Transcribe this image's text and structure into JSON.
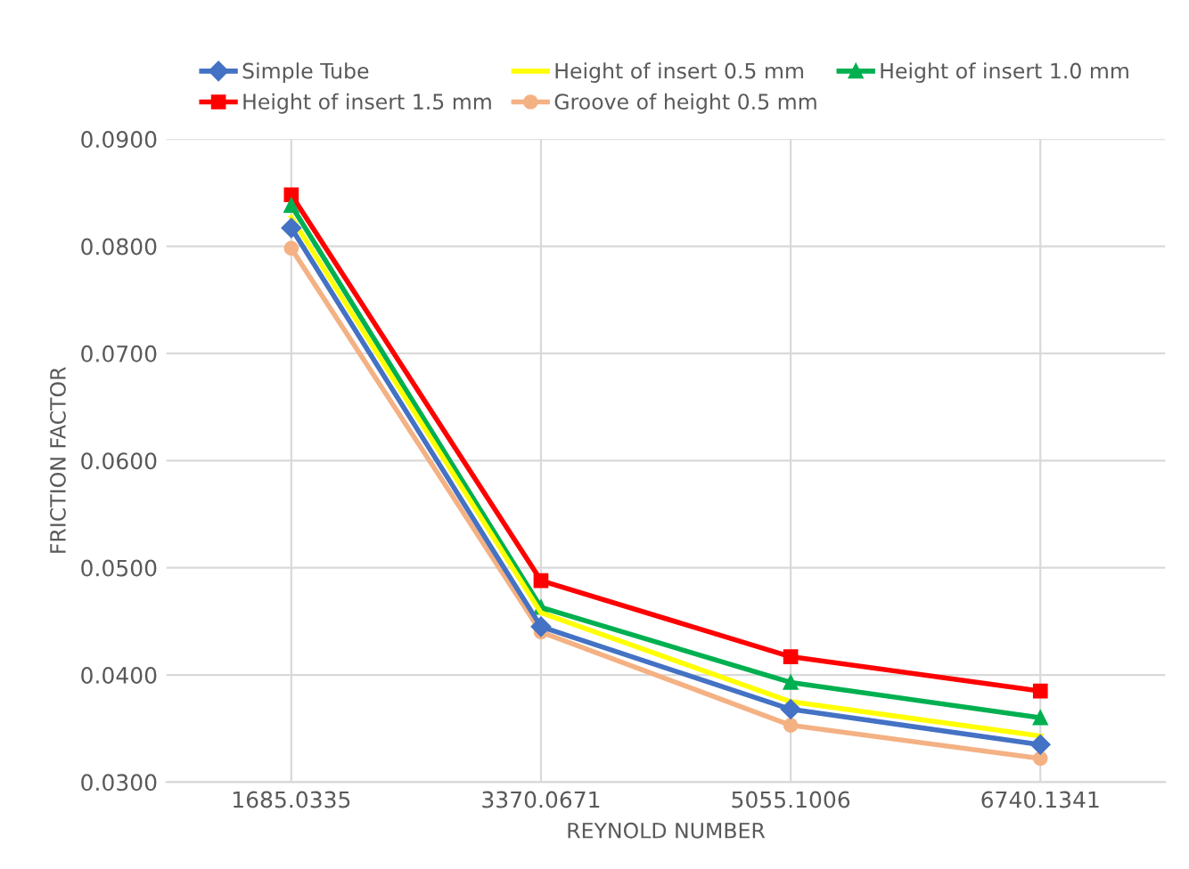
{
  "chart_data": {
    "type": "line",
    "xlabel": "REYNOLD NUMBER",
    "ylabel": "FRICTION FACTOR",
    "categories": [
      "1685.0335",
      "3370.0671",
      "5055.1006",
      "6740.1341"
    ],
    "series": [
      {
        "name": "Simple Tube",
        "color": "#4472c4",
        "marker": "diamond",
        "values": [
          0.0817,
          0.0445,
          0.0368,
          0.0335
        ]
      },
      {
        "name": "Height of insert 0.5 mm",
        "color": "#ffff00",
        "marker": "none",
        "values": [
          0.0827,
          0.0458,
          0.0375,
          0.0343
        ]
      },
      {
        "name": "Height of insert 1.0 mm",
        "color": "#00b050",
        "marker": "triangle",
        "values": [
          0.0838,
          0.0463,
          0.0393,
          0.036
        ]
      },
      {
        "name": "Height of insert 1.5 mm",
        "color": "#ff0000",
        "marker": "square",
        "values": [
          0.0848,
          0.0488,
          0.0417,
          0.0385
        ]
      },
      {
        "name": "Groove of height 0.5 mm",
        "color": "#f4b183",
        "marker": "circle",
        "values": [
          0.0798,
          0.044,
          0.0353,
          0.0322
        ]
      }
    ],
    "ylim": [
      0.03,
      0.09
    ],
    "yticks": [
      {
        "value": 0.03,
        "label": "0.0300"
      },
      {
        "value": 0.04,
        "label": "0.0400"
      },
      {
        "value": 0.05,
        "label": "0.0500"
      },
      {
        "value": 0.06,
        "label": "0.0600"
      },
      {
        "value": 0.07,
        "label": "0.0700"
      },
      {
        "value": 0.08,
        "label": "0.0800"
      },
      {
        "value": 0.09,
        "label": "0.0900"
      }
    ],
    "grid": true,
    "legend": "top",
    "line_style": "solid"
  }
}
